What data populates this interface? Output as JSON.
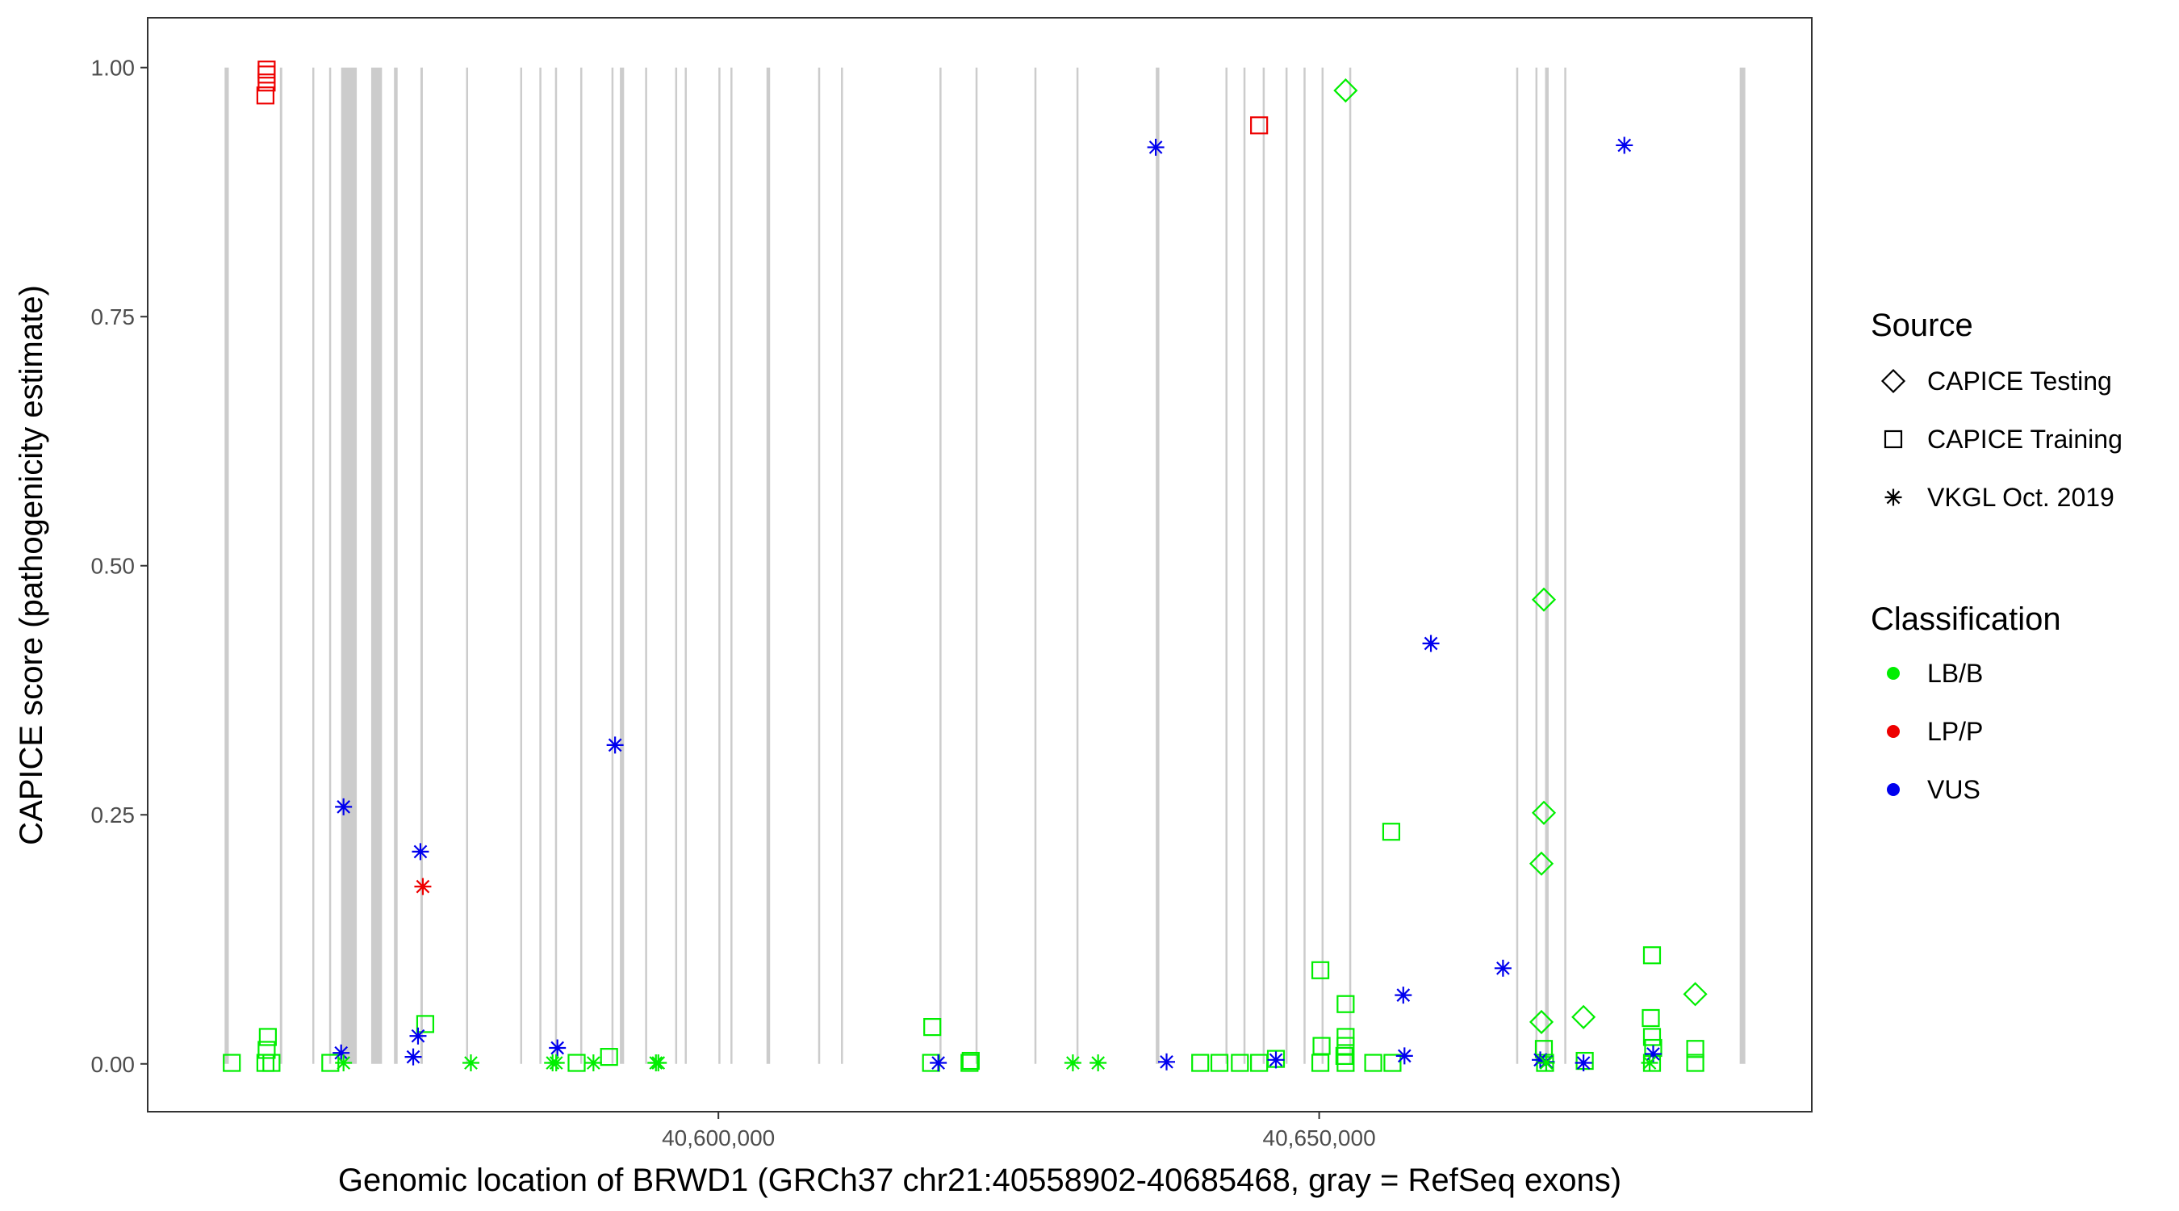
{
  "chart_data": {
    "type": "scatter",
    "xlabel": "Genomic location of BRWD1 (GRCh37 chr21:40558902-40685468, gray = RefSeq exons)",
    "ylabel": "CAPICE score (pathogenicity estimate)",
    "xlim": [
      40552500,
      40691000
    ],
    "ylim": [
      -0.048,
      1.05
    ],
    "x_ticks": [
      {
        "value": 40600000,
        "label": "40,600,000"
      },
      {
        "value": 40650000,
        "label": "40,650,000"
      }
    ],
    "y_ticks": [
      {
        "value": 0.0,
        "label": "0.00"
      },
      {
        "value": 0.25,
        "label": "0.25"
      },
      {
        "value": 0.5,
        "label": "0.50"
      },
      {
        "value": 0.75,
        "label": "0.75"
      },
      {
        "value": 1.0,
        "label": "1.00"
      }
    ],
    "grid": false,
    "legend_position": "right",
    "exons": [
      [
        40558902,
        40559250
      ],
      [
        40563500,
        40563700
      ],
      [
        40566200,
        40566350
      ],
      [
        40567600,
        40567750
      ],
      [
        40568600,
        40569900
      ],
      [
        40571100,
        40572000
      ],
      [
        40573000,
        40573300
      ],
      [
        40575200,
        40575400
      ],
      [
        40579000,
        40579150
      ],
      [
        40583500,
        40583650
      ],
      [
        40585100,
        40585250
      ],
      [
        40586400,
        40586550
      ],
      [
        40588500,
        40588650
      ],
      [
        40591100,
        40591250
      ],
      [
        40591800,
        40592150
      ],
      [
        40593900,
        40594050
      ],
      [
        40596400,
        40596550
      ],
      [
        40597200,
        40597350
      ],
      [
        40600000,
        40600150
      ],
      [
        40601000,
        40601150
      ],
      [
        40604000,
        40604300
      ],
      [
        40608300,
        40608450
      ],
      [
        40610200,
        40610350
      ],
      [
        40618400,
        40618550
      ],
      [
        40621400,
        40621550
      ],
      [
        40626300,
        40626450
      ],
      [
        40629800,
        40629950
      ],
      [
        40636400,
        40636700
      ],
      [
        40642200,
        40642350
      ],
      [
        40643700,
        40643850
      ],
      [
        40645300,
        40645450
      ],
      [
        40647200,
        40647350
      ],
      [
        40648700,
        40648850
      ],
      [
        40650200,
        40650350
      ],
      [
        40652500,
        40652650
      ],
      [
        40666400,
        40666550
      ],
      [
        40668000,
        40668150
      ],
      [
        40668800,
        40669100
      ],
      [
        40670400,
        40670550
      ],
      [
        40685000,
        40685468
      ]
    ],
    "colors": {
      "LB/B": "#00ee00",
      "LP/P": "#ee0000",
      "VUS": "#0000ee"
    },
    "series": [
      {
        "name": "CAPICE Testing",
        "points": [
          {
            "x": 40652200,
            "y": 0.977,
            "c": "LB/B"
          },
          {
            "x": 40668700,
            "y": 0.466,
            "c": "LB/B"
          },
          {
            "x": 40668700,
            "y": 0.252,
            "c": "LB/B"
          },
          {
            "x": 40668500,
            "y": 0.201,
            "c": "LB/B"
          },
          {
            "x": 40668500,
            "y": 0.042,
            "c": "LB/B"
          },
          {
            "x": 40672000,
            "y": 0.047,
            "c": "LB/B"
          },
          {
            "x": 40681300,
            "y": 0.07,
            "c": "LB/B"
          }
        ]
      },
      {
        "name": "CAPICE Training",
        "points": [
          {
            "x": 40562400,
            "y": 0.998,
            "c": "LP/P"
          },
          {
            "x": 40562400,
            "y": 0.993,
            "c": "LP/P"
          },
          {
            "x": 40562400,
            "y": 0.985,
            "c": "LP/P"
          },
          {
            "x": 40562300,
            "y": 0.972,
            "c": "LP/P"
          },
          {
            "x": 40645000,
            "y": 0.942,
            "c": "LP/P"
          },
          {
            "x": 40559500,
            "y": 0.001,
            "c": "LB/B"
          },
          {
            "x": 40562300,
            "y": 0.001,
            "c": "LB/B"
          },
          {
            "x": 40562400,
            "y": 0.014,
            "c": "LB/B"
          },
          {
            "x": 40562500,
            "y": 0.027,
            "c": "LB/B"
          },
          {
            "x": 40562800,
            "y": 0.001,
            "c": "LB/B"
          },
          {
            "x": 40567700,
            "y": 0.001,
            "c": "LB/B"
          },
          {
            "x": 40575600,
            "y": 0.04,
            "c": "LB/B"
          },
          {
            "x": 40588200,
            "y": 0.001,
            "c": "LB/B"
          },
          {
            "x": 40590900,
            "y": 0.007,
            "c": "LB/B"
          },
          {
            "x": 40617800,
            "y": 0.037,
            "c": "LB/B"
          },
          {
            "x": 40617700,
            "y": 0.001,
            "c": "LB/B"
          },
          {
            "x": 40620900,
            "y": 0.001,
            "c": "LB/B"
          },
          {
            "x": 40621000,
            "y": 0.003,
            "c": "LB/B"
          },
          {
            "x": 40640100,
            "y": 0.001,
            "c": "LB/B"
          },
          {
            "x": 40641700,
            "y": 0.001,
            "c": "LB/B"
          },
          {
            "x": 40643400,
            "y": 0.001,
            "c": "LB/B"
          },
          {
            "x": 40645000,
            "y": 0.001,
            "c": "LB/B"
          },
          {
            "x": 40646400,
            "y": 0.005,
            "c": "LB/B"
          },
          {
            "x": 40650100,
            "y": 0.094,
            "c": "LB/B"
          },
          {
            "x": 40650200,
            "y": 0.018,
            "c": "LB/B"
          },
          {
            "x": 40650100,
            "y": 0.001,
            "c": "LB/B"
          },
          {
            "x": 40652200,
            "y": 0.06,
            "c": "LB/B"
          },
          {
            "x": 40652200,
            "y": 0.027,
            "c": "LB/B"
          },
          {
            "x": 40652200,
            "y": 0.018,
            "c": "LB/B"
          },
          {
            "x": 40652100,
            "y": 0.008,
            "c": "LB/B"
          },
          {
            "x": 40652200,
            "y": 0.001,
            "c": "LB/B"
          },
          {
            "x": 40654500,
            "y": 0.001,
            "c": "LB/B"
          },
          {
            "x": 40656000,
            "y": 0.233,
            "c": "LB/B"
          },
          {
            "x": 40656100,
            "y": 0.001,
            "c": "LB/B"
          },
          {
            "x": 40668700,
            "y": 0.015,
            "c": "LB/B"
          },
          {
            "x": 40668800,
            "y": 0.001,
            "c": "LB/B"
          },
          {
            "x": 40672100,
            "y": 0.003,
            "c": "LB/B"
          },
          {
            "x": 40677700,
            "y": 0.109,
            "c": "LB/B"
          },
          {
            "x": 40677600,
            "y": 0.046,
            "c": "LB/B"
          },
          {
            "x": 40677700,
            "y": 0.027,
            "c": "LB/B"
          },
          {
            "x": 40677800,
            "y": 0.016,
            "c": "LB/B"
          },
          {
            "x": 40677700,
            "y": 0.001,
            "c": "LB/B"
          },
          {
            "x": 40681300,
            "y": 0.015,
            "c": "LB/B"
          },
          {
            "x": 40681300,
            "y": 0.001,
            "c": "LB/B"
          }
        ]
      },
      {
        "name": "VKGL Oct. 2019",
        "points": [
          {
            "x": 40636400,
            "y": 0.92,
            "c": "VUS"
          },
          {
            "x": 40675400,
            "y": 0.922,
            "c": "VUS"
          },
          {
            "x": 40659300,
            "y": 0.422,
            "c": "VUS"
          },
          {
            "x": 40591400,
            "y": 0.32,
            "c": "VUS"
          },
          {
            "x": 40568800,
            "y": 0.258,
            "c": "VUS"
          },
          {
            "x": 40575200,
            "y": 0.213,
            "c": "VUS"
          },
          {
            "x": 40575400,
            "y": 0.178,
            "c": "LP/P"
          },
          {
            "x": 40665300,
            "y": 0.096,
            "c": "VUS"
          },
          {
            "x": 40657000,
            "y": 0.069,
            "c": "VUS"
          },
          {
            "x": 40575000,
            "y": 0.028,
            "c": "VUS"
          },
          {
            "x": 40586600,
            "y": 0.016,
            "c": "VUS"
          },
          {
            "x": 40568600,
            "y": 0.011,
            "c": "VUS"
          },
          {
            "x": 40574600,
            "y": 0.007,
            "c": "VUS"
          },
          {
            "x": 40657100,
            "y": 0.008,
            "c": "VUS"
          },
          {
            "x": 40677800,
            "y": 0.01,
            "c": "VUS"
          },
          {
            "x": 40668400,
            "y": 0.004,
            "c": "VUS"
          },
          {
            "x": 40668900,
            "y": 0.002,
            "c": "VUS"
          },
          {
            "x": 40646400,
            "y": 0.004,
            "c": "VUS"
          },
          {
            "x": 40637300,
            "y": 0.002,
            "c": "VUS"
          },
          {
            "x": 40618300,
            "y": 0.001,
            "c": "VUS"
          },
          {
            "x": 40672000,
            "y": 0.001,
            "c": "VUS"
          },
          {
            "x": 40568800,
            "y": 0.001,
            "c": "LB/B"
          },
          {
            "x": 40579400,
            "y": 0.001,
            "c": "LB/B"
          },
          {
            "x": 40586200,
            "y": 0.001,
            "c": "LB/B"
          },
          {
            "x": 40586500,
            "y": 0.001,
            "c": "LB/B"
          },
          {
            "x": 40589600,
            "y": 0.001,
            "c": "LB/B"
          },
          {
            "x": 40594800,
            "y": 0.001,
            "c": "LB/B"
          },
          {
            "x": 40595000,
            "y": 0.001,
            "c": "LB/B"
          },
          {
            "x": 40629500,
            "y": 0.001,
            "c": "LB/B"
          },
          {
            "x": 40631600,
            "y": 0.001,
            "c": "LB/B"
          },
          {
            "x": 40668900,
            "y": 0.001,
            "c": "LB/B"
          },
          {
            "x": 40677500,
            "y": 0.001,
            "c": "LB/B"
          }
        ]
      }
    ],
    "legend": {
      "source_title": "Source",
      "source_items": [
        {
          "label": "CAPICE Testing",
          "shape": "diamond"
        },
        {
          "label": "CAPICE Training",
          "shape": "square"
        },
        {
          "label": "VKGL Oct. 2019",
          "shape": "asterisk"
        }
      ],
      "class_title": "Classification",
      "class_items": [
        {
          "label": "LB/B",
          "color": "#00ee00"
        },
        {
          "label": "LP/P",
          "color": "#ee0000"
        },
        {
          "label": "VUS",
          "color": "#0000ee"
        }
      ]
    }
  }
}
